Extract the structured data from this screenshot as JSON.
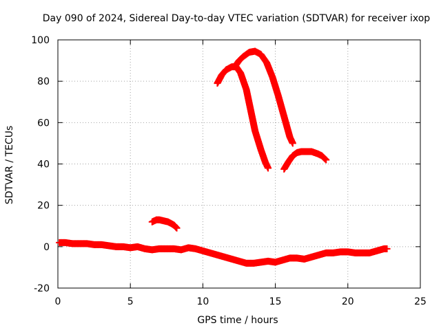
{
  "chart_data": {
    "type": "scatter",
    "title": "Day 090 of 2024, Sidereal Day-to-day VTEC variation (SDTVAR) for receiver ixop",
    "xlabel": "GPS time / hours",
    "ylabel": "SDTVAR / TECUs",
    "xlim": [
      0,
      25
    ],
    "ylim": [
      -20,
      100
    ],
    "xticks": [
      0,
      5,
      10,
      15,
      20,
      25
    ],
    "yticks": [
      -20,
      0,
      20,
      40,
      60,
      80,
      100
    ],
    "grid": true,
    "marker": "plus",
    "series_color": "#ff0000",
    "series": [
      {
        "name": "near-zero track",
        "x": [
          0.1,
          0.5,
          1.0,
          1.5,
          2.0,
          2.5,
          3.0,
          3.5,
          4.0,
          4.5,
          5.0,
          5.5,
          6.0,
          6.5,
          7.0,
          7.5,
          8.0,
          8.5,
          9.0,
          9.5,
          10.0,
          10.5,
          11.0,
          11.5,
          12.0,
          12.5,
          13.0,
          13.5,
          14.0,
          14.5,
          15.0,
          15.5,
          16.0,
          16.5,
          17.0,
          17.5,
          18.0,
          18.5,
          19.0,
          19.5,
          20.0,
          20.5,
          21.0,
          21.5,
          22.0,
          22.5,
          22.7
        ],
        "y": [
          2,
          2,
          1.5,
          1.5,
          1.5,
          1,
          1,
          0.5,
          0,
          0,
          -0.5,
          0,
          -1,
          -1.5,
          -1,
          -1,
          -1,
          -1.5,
          -0.5,
          -1,
          -2,
          -3,
          -4,
          -5,
          -6,
          -7,
          -8,
          -8,
          -7.5,
          -7,
          -7.5,
          -6.5,
          -5.5,
          -5.5,
          -6,
          -5,
          -4,
          -3,
          -3,
          -2.5,
          -2.5,
          -3,
          -3,
          -3,
          -2,
          -1,
          -1
        ]
      },
      {
        "name": "arc 1",
        "x": [
          6.5,
          6.8,
          7.0,
          7.3,
          7.6,
          8.0,
          8.2
        ],
        "y": [
          12,
          13,
          13,
          12.5,
          12,
          10.5,
          9
        ]
      },
      {
        "name": "arc 2",
        "x": [
          11.0,
          11.3,
          11.6,
          12.0,
          12.3,
          12.6,
          13.0,
          13.3,
          13.6,
          14.0,
          14.3,
          14.5
        ],
        "y": [
          79,
          83,
          85.5,
          87,
          87,
          84,
          76,
          66,
          56,
          47,
          41,
          38
        ]
      },
      {
        "name": "arc 3",
        "x": [
          12.2,
          12.5,
          12.8,
          13.2,
          13.6,
          14.0,
          14.4,
          14.8,
          15.2,
          15.6,
          16.0,
          16.2
        ],
        "y": [
          87,
          90,
          92,
          94,
          94.5,
          93,
          89,
          82,
          73,
          63,
          53,
          50
        ]
      },
      {
        "name": "arc 4",
        "x": [
          15.6,
          15.9,
          16.2,
          16.5,
          16.8,
          17.1,
          17.5,
          17.9,
          18.2,
          18.5
        ],
        "y": [
          37.5,
          41,
          44,
          45.5,
          46,
          46,
          46,
          45,
          44,
          42
        ]
      }
    ]
  }
}
